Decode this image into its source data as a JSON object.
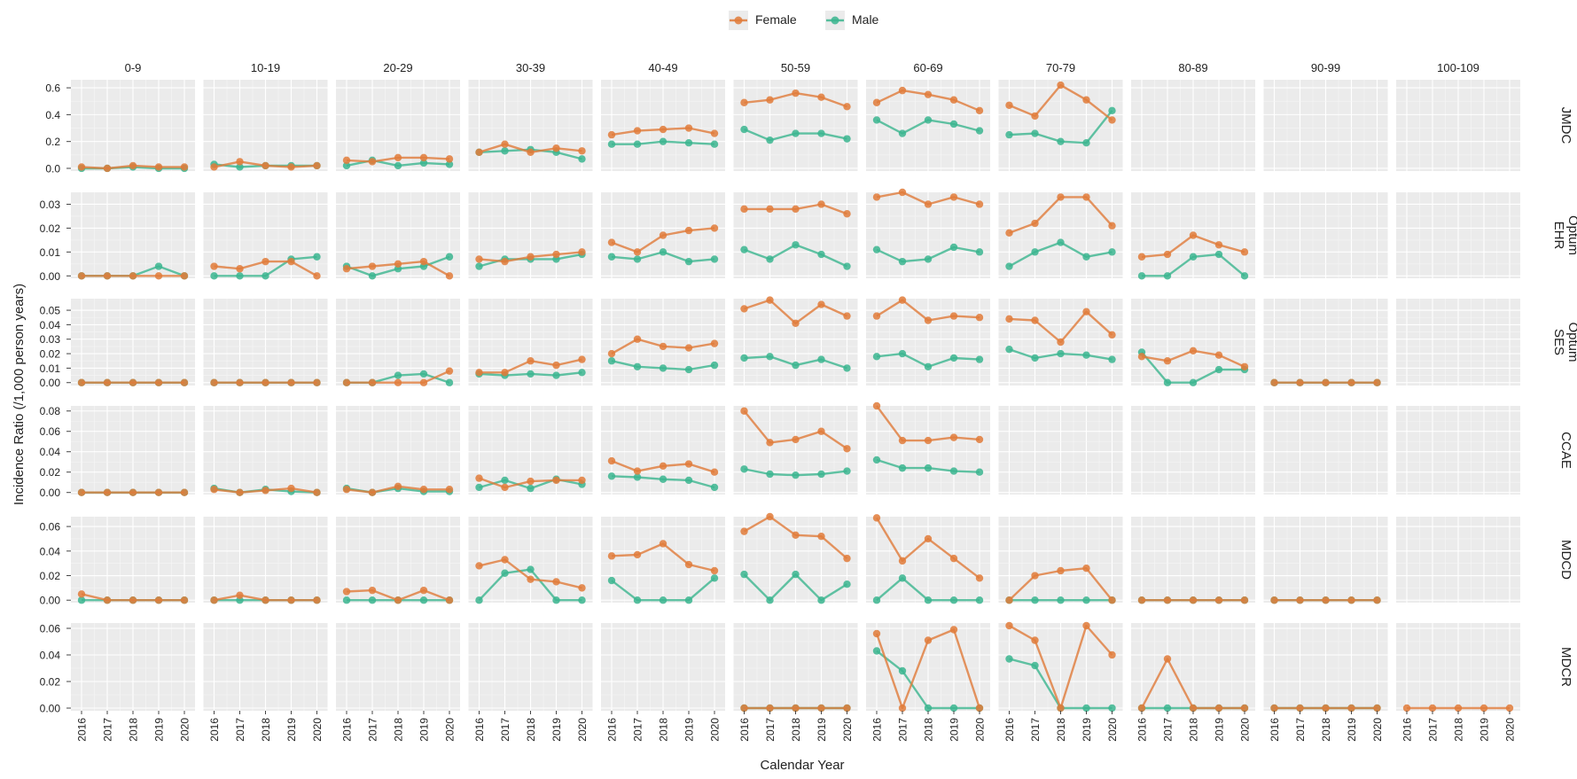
{
  "chart_data": {
    "type": "line",
    "xlabel": "Calendar Year",
    "ylabel": "Incidence Ratio (/1,000 person years)",
    "x": [
      "2016",
      "2017",
      "2018",
      "2019",
      "2020"
    ],
    "age_groups": [
      "0-9",
      "10-19",
      "20-29",
      "30-39",
      "40-49",
      "50-59",
      "60-69",
      "70-79",
      "80-89",
      "90-99",
      "100-109"
    ],
    "legend": {
      "position": "top",
      "items": [
        {
          "name": "Female",
          "color": "#E07B39"
        },
        {
          "name": "Male",
          "color": "#3BB58F"
        }
      ]
    },
    "grid": true,
    "rows": [
      {
        "label": [
          "JMDC"
        ],
        "ylim": [
          -0.02,
          0.66
        ],
        "yticks": [
          0.0,
          0.2,
          0.4,
          0.6
        ],
        "yticklabels": [
          "0.0",
          "0.2",
          "0.4",
          "0.6"
        ],
        "panels": [
          {
            "Female": [
              0.01,
              0.0,
              0.02,
              0.01,
              0.01
            ],
            "Male": [
              0.0,
              0.0,
              0.01,
              0.0,
              0.0
            ]
          },
          {
            "Female": [
              0.01,
              0.05,
              0.02,
              0.01,
              0.02
            ],
            "Male": [
              0.03,
              0.01,
              0.02,
              0.02,
              0.02
            ]
          },
          {
            "Female": [
              0.06,
              0.05,
              0.08,
              0.08,
              0.07
            ],
            "Male": [
              0.02,
              0.06,
              0.02,
              0.04,
              0.03
            ]
          },
          {
            "Female": [
              0.12,
              0.18,
              0.12,
              0.15,
              0.13
            ],
            "Male": [
              0.12,
              0.13,
              0.14,
              0.12,
              0.07
            ]
          },
          {
            "Female": [
              0.25,
              0.28,
              0.29,
              0.3,
              0.26
            ],
            "Male": [
              0.18,
              0.18,
              0.2,
              0.19,
              0.18
            ]
          },
          {
            "Female": [
              0.49,
              0.51,
              0.56,
              0.53,
              0.46
            ],
            "Male": [
              0.29,
              0.21,
              0.26,
              0.26,
              0.22
            ]
          },
          {
            "Female": [
              0.49,
              0.58,
              0.55,
              0.51,
              0.43
            ],
            "Male": [
              0.36,
              0.26,
              0.36,
              0.33,
              0.28
            ]
          },
          {
            "Female": [
              0.47,
              0.39,
              0.62,
              0.51,
              0.36
            ],
            "Male": [
              0.25,
              0.26,
              0.2,
              0.19,
              0.43
            ]
          },
          null,
          null,
          null
        ]
      },
      {
        "label": [
          "Optum",
          "EHR"
        ],
        "ylim": [
          -0.001,
          0.035
        ],
        "yticks": [
          0.0,
          0.01,
          0.02,
          0.03
        ],
        "yticklabels": [
          "0.00",
          "0.01",
          "0.02",
          "0.03"
        ],
        "panels": [
          {
            "Female": [
              0.0,
              0.0,
              0.0,
              0.0,
              0.0
            ],
            "Male": [
              0.0,
              0.0,
              0.0,
              0.004,
              0.0
            ]
          },
          {
            "Female": [
              0.004,
              0.003,
              0.006,
              0.006,
              0.0
            ],
            "Male": [
              0.0,
              0.0,
              0.0,
              0.007,
              0.008
            ]
          },
          {
            "Female": [
              0.003,
              0.004,
              0.005,
              0.006,
              0.0
            ],
            "Male": [
              0.004,
              0.0,
              0.003,
              0.004,
              0.008
            ]
          },
          {
            "Female": [
              0.007,
              0.006,
              0.008,
              0.009,
              0.01
            ],
            "Male": [
              0.004,
              0.007,
              0.007,
              0.007,
              0.009
            ]
          },
          {
            "Female": [
              0.014,
              0.01,
              0.017,
              0.019,
              0.02
            ],
            "Male": [
              0.008,
              0.007,
              0.01,
              0.006,
              0.007
            ]
          },
          {
            "Female": [
              0.028,
              0.028,
              0.028,
              0.03,
              0.026
            ],
            "Male": [
              0.011,
              0.007,
              0.013,
              0.009,
              0.004
            ]
          },
          {
            "Female": [
              0.033,
              0.035,
              0.03,
              0.033,
              0.03
            ],
            "Male": [
              0.011,
              0.006,
              0.007,
              0.012,
              0.01
            ]
          },
          {
            "Female": [
              0.018,
              0.022,
              0.033,
              0.033,
              0.021
            ],
            "Male": [
              0.004,
              0.01,
              0.014,
              0.008,
              0.01
            ]
          },
          {
            "Female": [
              0.008,
              0.009,
              0.017,
              0.013,
              0.01
            ],
            "Male": [
              0.0,
              0.0,
              0.008,
              0.009,
              0.0
            ]
          },
          null,
          null
        ]
      },
      {
        "label": [
          "Optum",
          "SES"
        ],
        "ylim": [
          -0.002,
          0.058
        ],
        "yticks": [
          0.0,
          0.01,
          0.02,
          0.03,
          0.04,
          0.05
        ],
        "yticklabels": [
          "0.00",
          "0.01",
          "0.02",
          "0.03",
          "0.04",
          "0.05"
        ],
        "panels": [
          {
            "Female": [
              0.0,
              0.0,
              0.0,
              0.0,
              0.0
            ],
            "Male": [
              0.0,
              0.0,
              0.0,
              0.0,
              0.0
            ]
          },
          {
            "Female": [
              0.0,
              0.0,
              0.0,
              0.0,
              0.0
            ],
            "Male": [
              0.0,
              0.0,
              0.0,
              0.0,
              0.0
            ]
          },
          {
            "Female": [
              0.0,
              0.0,
              0.0,
              0.0,
              0.008
            ],
            "Male": [
              0.0,
              0.0,
              0.005,
              0.006,
              0.0
            ]
          },
          {
            "Female": [
              0.007,
              0.007,
              0.015,
              0.012,
              0.016
            ],
            "Male": [
              0.006,
              0.005,
              0.006,
              0.005,
              0.007
            ]
          },
          {
            "Female": [
              0.02,
              0.03,
              0.025,
              0.024,
              0.027
            ],
            "Male": [
              0.015,
              0.011,
              0.01,
              0.009,
              0.012
            ]
          },
          {
            "Female": [
              0.051,
              0.057,
              0.041,
              0.054,
              0.046
            ],
            "Male": [
              0.017,
              0.018,
              0.012,
              0.016,
              0.01
            ]
          },
          {
            "Female": [
              0.046,
              0.057,
              0.043,
              0.046,
              0.045
            ],
            "Male": [
              0.018,
              0.02,
              0.011,
              0.017,
              0.016
            ]
          },
          {
            "Female": [
              0.044,
              0.043,
              0.028,
              0.049,
              0.033
            ],
            "Male": [
              0.023,
              0.017,
              0.02,
              0.019,
              0.016
            ]
          },
          {
            "Female": [
              0.018,
              0.015,
              0.022,
              0.019,
              0.011
            ],
            "Male": [
              0.021,
              0.0,
              0.0,
              0.009,
              0.009
            ]
          },
          {
            "Female": [
              0.0,
              0.0,
              0.0,
              0.0,
              0.0
            ],
            "Male": [
              0.0,
              0.0,
              0.0,
              0.0,
              0.0
            ]
          },
          null
        ]
      },
      {
        "label": [
          "CCAE"
        ],
        "ylim": [
          -0.002,
          0.085
        ],
        "yticks": [
          0.0,
          0.02,
          0.04,
          0.06,
          0.08
        ],
        "yticklabels": [
          "0.00",
          "0.02",
          "0.04",
          "0.06",
          "0.08"
        ],
        "panels": [
          {
            "Female": [
              0.0,
              0.0,
              0.0,
              0.0,
              0.0
            ],
            "Male": [
              0.0,
              0.0,
              0.0,
              0.0,
              0.0
            ]
          },
          {
            "Female": [
              0.003,
              0.0,
              0.002,
              0.004,
              0.0
            ],
            "Male": [
              0.004,
              0.0,
              0.003,
              0.001,
              0.0
            ]
          },
          {
            "Female": [
              0.003,
              0.0,
              0.006,
              0.003,
              0.003
            ],
            "Male": [
              0.004,
              0.0,
              0.004,
              0.001,
              0.001
            ]
          },
          {
            "Female": [
              0.014,
              0.005,
              0.011,
              0.012,
              0.012
            ],
            "Male": [
              0.005,
              0.012,
              0.004,
              0.013,
              0.008
            ]
          },
          {
            "Female": [
              0.031,
              0.021,
              0.026,
              0.028,
              0.02
            ],
            "Male": [
              0.016,
              0.015,
              0.013,
              0.012,
              0.005
            ]
          },
          {
            "Female": [
              0.08,
              0.049,
              0.052,
              0.06,
              0.043
            ],
            "Male": [
              0.023,
              0.018,
              0.017,
              0.018,
              0.021
            ]
          },
          {
            "Female": [
              0.085,
              0.051,
              0.051,
              0.054,
              0.052
            ],
            "Male": [
              0.032,
              0.024,
              0.024,
              0.021,
              0.02
            ]
          },
          null,
          null,
          null,
          null
        ]
      },
      {
        "label": [
          "MDCD"
        ],
        "ylim": [
          -0.002,
          0.068
        ],
        "yticks": [
          0.0,
          0.02,
          0.04,
          0.06
        ],
        "yticklabels": [
          "0.00",
          "0.02",
          "0.04",
          "0.06"
        ],
        "panels": [
          {
            "Female": [
              0.005,
              0.0,
              0.0,
              0.0,
              0.0
            ],
            "Male": [
              0.0,
              0.0,
              0.0,
              0.0,
              0.0
            ]
          },
          {
            "Female": [
              0.0,
              0.004,
              0.0,
              0.0,
              0.0
            ],
            "Male": [
              0.0,
              0.0,
              0.0,
              0.0,
              0.0
            ]
          },
          {
            "Female": [
              0.007,
              0.008,
              0.0,
              0.008,
              0.0
            ],
            "Male": [
              0.0,
              0.0,
              0.0,
              0.0,
              0.0
            ]
          },
          {
            "Female": [
              0.028,
              0.033,
              0.017,
              0.015,
              0.01
            ],
            "Male": [
              0.0,
              0.022,
              0.025,
              0.0,
              0.0
            ]
          },
          {
            "Female": [
              0.036,
              0.037,
              0.046,
              0.029,
              0.024
            ],
            "Male": [
              0.016,
              0.0,
              0.0,
              0.0,
              0.018
            ]
          },
          {
            "Female": [
              0.056,
              0.068,
              0.053,
              0.052,
              0.034
            ],
            "Male": [
              0.021,
              0.0,
              0.021,
              0.0,
              0.013
            ]
          },
          {
            "Female": [
              0.067,
              0.032,
              0.05,
              0.034,
              0.018
            ],
            "Male": [
              0.0,
              0.018,
              0.0,
              0.0,
              0.0
            ]
          },
          {
            "Female": [
              0.0,
              0.02,
              0.024,
              0.026,
              0.0
            ],
            "Male": [
              0.0,
              0.0,
              0.0,
              0.0,
              0.0
            ]
          },
          {
            "Female": [
              0.0,
              0.0,
              0.0,
              0.0,
              0.0
            ],
            "Male": [
              0.0,
              0.0,
              0.0,
              0.0,
              0.0
            ]
          },
          {
            "Female": [
              0.0,
              0.0,
              0.0,
              0.0,
              0.0
            ],
            "Male": [
              0.0,
              0.0,
              0.0,
              0.0,
              0.0
            ]
          },
          null
        ]
      },
      {
        "label": [
          "MDCR"
        ],
        "ylim": [
          -0.002,
          0.064
        ],
        "yticks": [
          0.0,
          0.02,
          0.04,
          0.06
        ],
        "yticklabels": [
          "0.00",
          "0.02",
          "0.04",
          "0.06"
        ],
        "panels": [
          null,
          null,
          null,
          null,
          null,
          {
            "Female": [
              0.0,
              0.0,
              0.0,
              0.0,
              0.0
            ],
            "Male": [
              0.0,
              0.0,
              0.0,
              0.0,
              0.0
            ]
          },
          {
            "Female": [
              0.056,
              0.0,
              0.051,
              0.059,
              0.0
            ],
            "Male": [
              0.043,
              0.028,
              0.0,
              0.0,
              0.0
            ]
          },
          {
            "Female": [
              0.062,
              0.051,
              0.0,
              0.062,
              0.04
            ],
            "Male": [
              0.037,
              0.032,
              0.0,
              0.0,
              0.0
            ]
          },
          {
            "Female": [
              0.0,
              0.037,
              0.0,
              0.0,
              0.0
            ],
            "Male": [
              0.0,
              0.0,
              0.0,
              0.0,
              0.0
            ]
          },
          {
            "Female": [
              0.0,
              0.0,
              0.0,
              0.0,
              0.0
            ],
            "Male": [
              0.0,
              0.0,
              0.0,
              0.0,
              0.0
            ]
          },
          {
            "Female": [
              0.0,
              0.0,
              0.0,
              0.0,
              0.0
            ],
            "Male": null
          }
        ]
      }
    ]
  }
}
